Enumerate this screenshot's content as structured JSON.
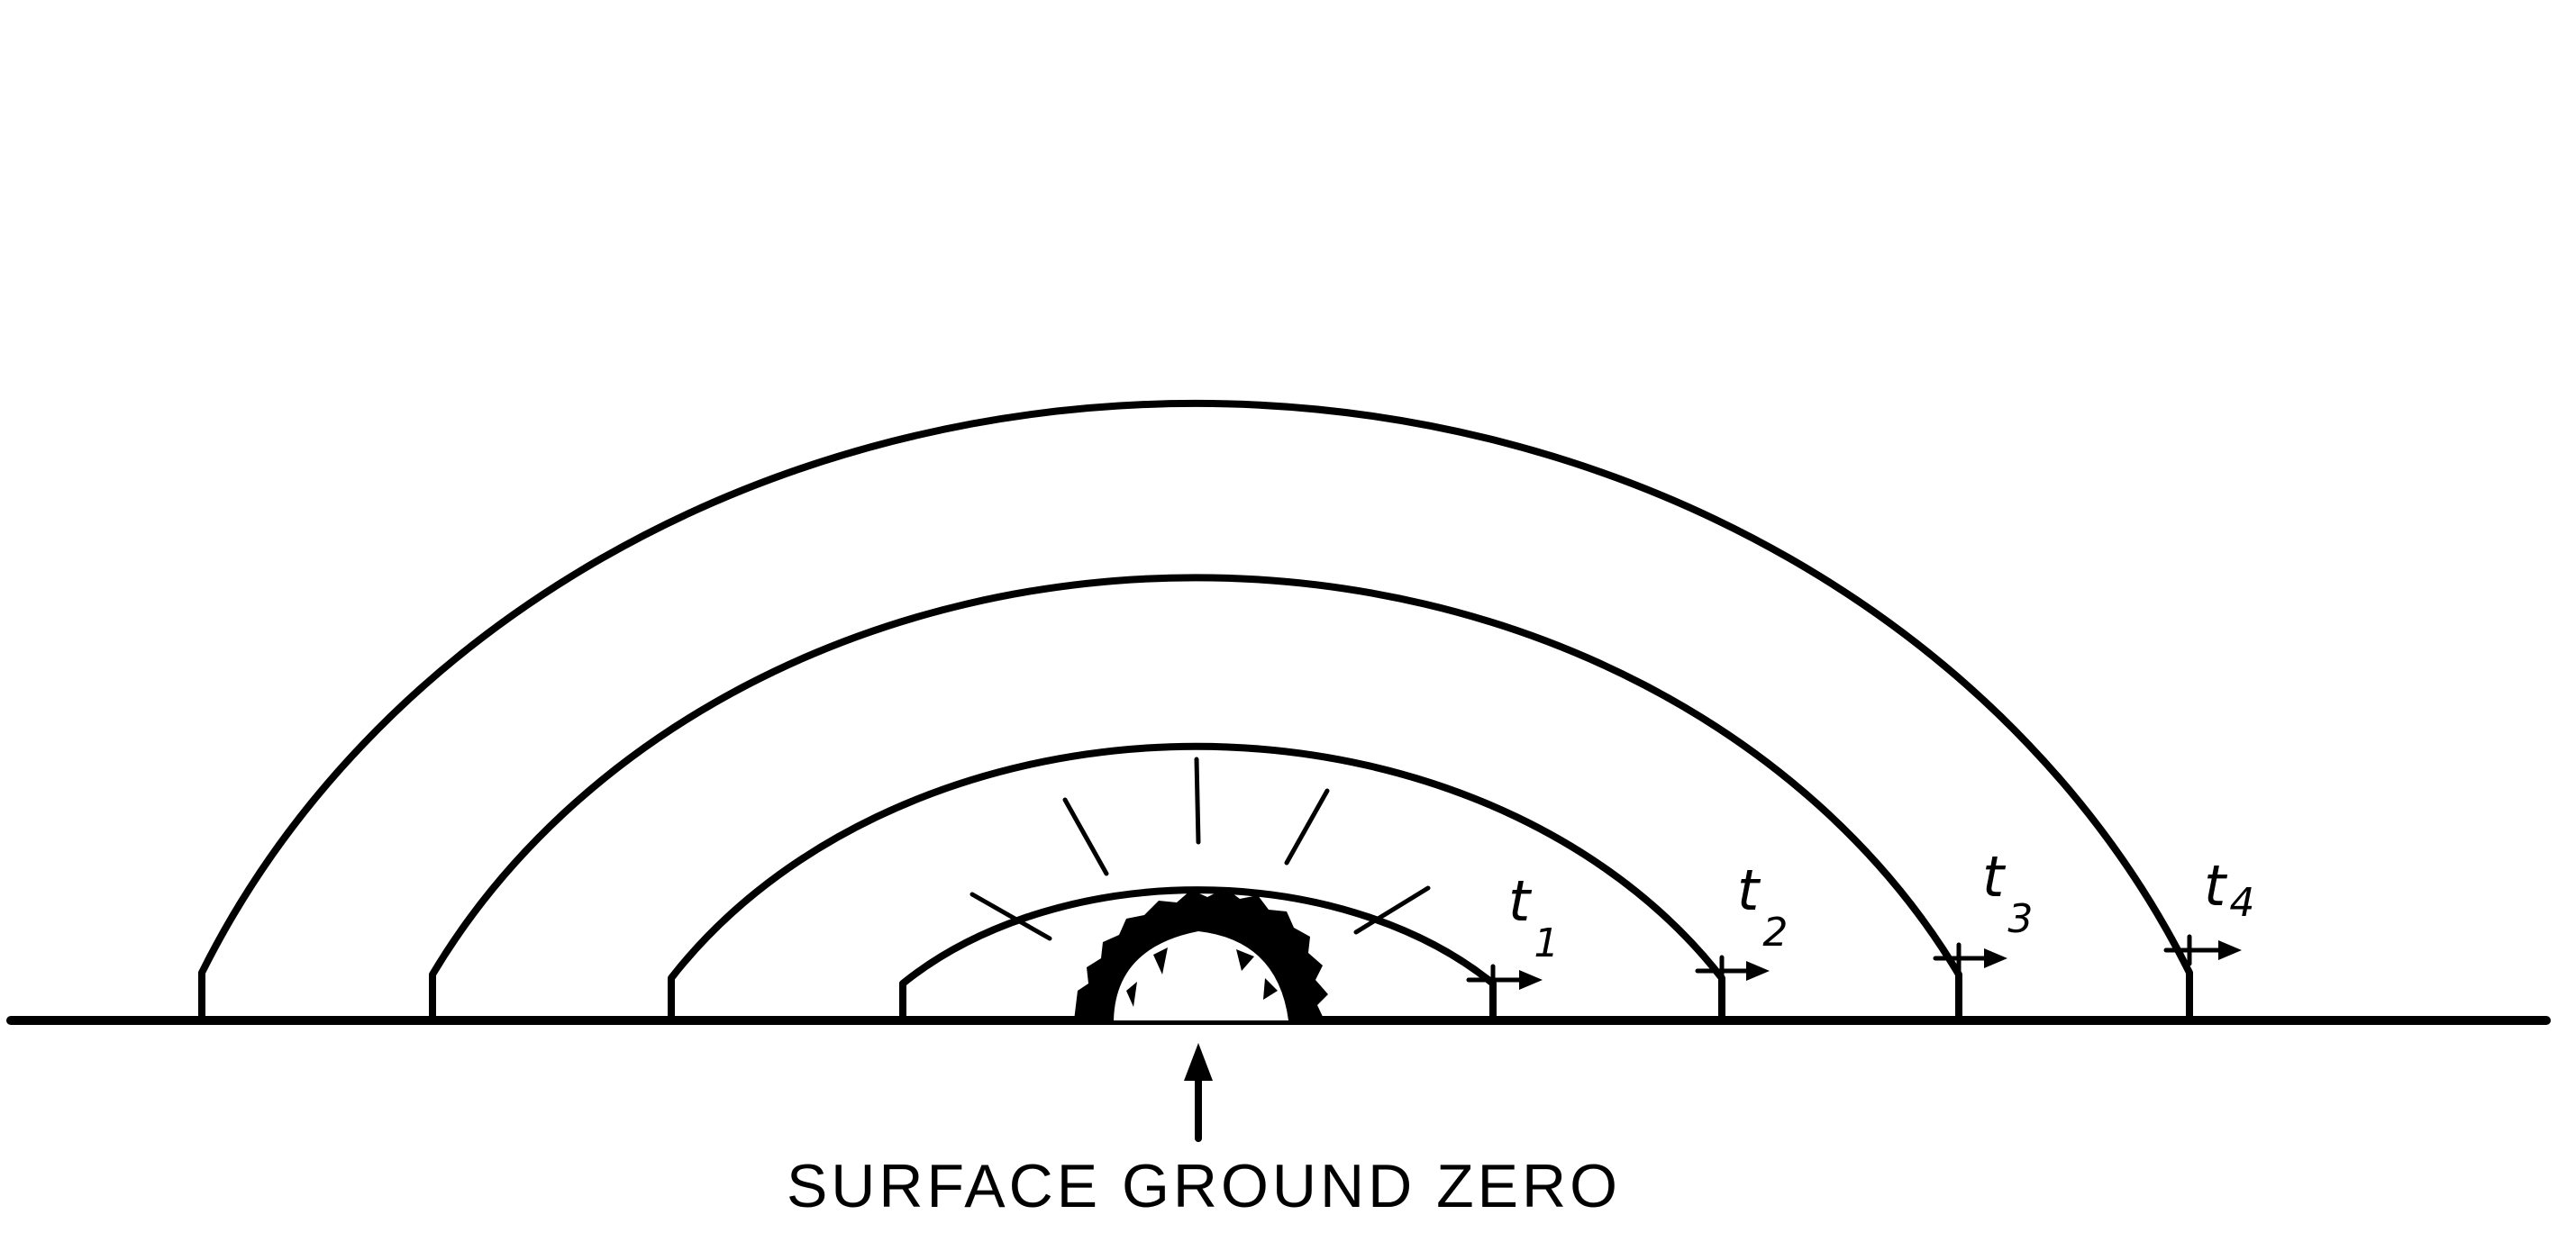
{
  "caption": "SURFACE GROUND ZERO",
  "time_labels": [
    {
      "letter": "t",
      "subscript": "1"
    },
    {
      "letter": "t",
      "subscript": "2"
    },
    {
      "letter": "t",
      "subscript": "3"
    },
    {
      "letter": "t",
      "subscript": "4"
    }
  ],
  "colors": {
    "ink": "#000000",
    "paper": "#ffffff"
  }
}
